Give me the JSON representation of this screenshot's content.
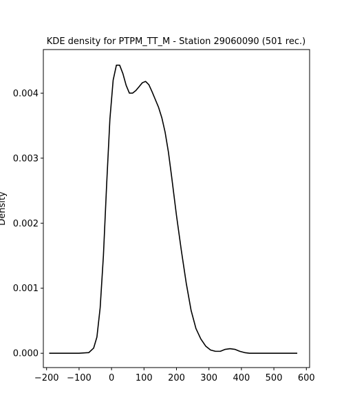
{
  "chart_data": {
    "type": "line",
    "title": "KDE density for PTPM_TT_M - Station 29060090 (501 rec.)",
    "xlabel": "",
    "ylabel": "Density",
    "xlim": [
      -210,
      610
    ],
    "ylim": [
      -0.00022,
      0.00467
    ],
    "xticks": [
      -200,
      -100,
      0,
      100,
      200,
      300,
      400,
      500,
      600
    ],
    "xtick_labels": [
      "−200",
      "−100",
      "0",
      "100",
      "200",
      "300",
      "400",
      "500",
      "600"
    ],
    "yticks": [
      0.0,
      0.001,
      0.002,
      0.003,
      0.004
    ],
    "ytick_labels": [
      "0.000",
      "0.001",
      "0.002",
      "0.003",
      "0.004"
    ],
    "grid": false,
    "line_color": "#000000",
    "series": [
      {
        "x": [
          -192,
          -100,
          -70,
          -55,
          -45,
          -35,
          -25,
          -15,
          -5,
          5,
          15,
          25,
          35,
          45,
          55,
          65,
          75,
          85,
          95,
          105,
          115,
          125,
          135,
          145,
          155,
          165,
          175,
          185,
          200,
          215,
          230,
          245,
          260,
          275,
          290,
          305,
          320,
          335,
          350,
          365,
          380,
          395,
          410,
          425,
          440,
          460,
          500,
          572
        ],
        "y": [
          0.0,
          0.0,
          1e-05,
          8e-05,
          0.00025,
          0.0007,
          0.0015,
          0.0026,
          0.0036,
          0.0042,
          0.00443,
          0.00443,
          0.0043,
          0.00412,
          0.004,
          0.004,
          0.00404,
          0.0041,
          0.00416,
          0.00418,
          0.00413,
          0.00402,
          0.0039,
          0.00378,
          0.00362,
          0.0034,
          0.0031,
          0.00272,
          0.00212,
          0.00158,
          0.00108,
          0.00066,
          0.00038,
          0.00022,
          0.00011,
          5e-05,
          3e-05,
          3e-05,
          6e-05,
          7e-05,
          6e-05,
          3e-05,
          1e-05,
          0.0,
          0.0,
          0.0,
          0.0,
          0.0
        ]
      }
    ]
  }
}
